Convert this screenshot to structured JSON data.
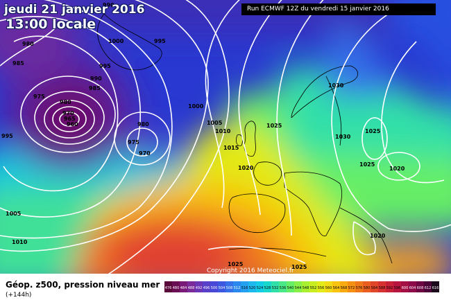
{
  "header": {
    "date": "jeudi 21 janvier 2016",
    "time": "13:00 locale",
    "run": "Run ECMWF 12Z du vendredi 15 janvier 2016"
  },
  "footer": {
    "title": "Géop. z500, pression niveau mer",
    "lead": "(+144h)",
    "copyright": "Copyright 2016 Meteociel.fr"
  },
  "isobar_labels": [
    "990",
    "980",
    "985",
    "990",
    "975",
    "980",
    "970",
    "965",
    "960",
    "995",
    "985",
    "995",
    "1000",
    "995",
    "1000",
    "980",
    "975",
    "970",
    "1005",
    "1010",
    "1015",
    "1020",
    "1025",
    "1030",
    "1030",
    "1025",
    "1025",
    "1020",
    "1020",
    "1005",
    "1010",
    "1025",
    "1025"
  ],
  "colorbar": {
    "labels": [
      "476",
      "480",
      "484",
      "488",
      "492",
      "496",
      "500",
      "504",
      "508",
      "512",
      "516",
      "520",
      "524",
      "528",
      "532",
      "536",
      "540",
      "544",
      "548",
      "552",
      "556",
      "560",
      "564",
      "568",
      "572",
      "576",
      "580",
      "584",
      "588",
      "592",
      "596",
      "600",
      "604",
      "608",
      "612",
      "616"
    ],
    "colors": [
      "#5a0a3a",
      "#6b0f55",
      "#7a1a78",
      "#7b2b9a",
      "#6a36b5",
      "#5840c8",
      "#4848d8",
      "#3c58e0",
      "#3470e8",
      "#2b88ee",
      "#23a0f0",
      "#1cb8ee",
      "#15cce6",
      "#18d8cc",
      "#30e0a8",
      "#4ae888",
      "#66ee66",
      "#88f048",
      "#a8f030",
      "#c8ee20",
      "#e2ea18",
      "#f2da14",
      "#f8c410",
      "#f8aa10",
      "#f59014",
      "#f0781a",
      "#ea5e22",
      "#e2462a",
      "#d63232",
      "#c82238",
      "#b8163e",
      "#a40f44",
      "#8c0a48",
      "#6e0642",
      "#4c0438",
      "#1a0a1a"
    ]
  },
  "colors": {
    "deep_low": "#6a0f6a",
    "ocean_blue": "#2a30d0",
    "sea_green": "#35c8a0",
    "ridge_yellow": "#e8e020",
    "warm_orange": "#f08a28",
    "hot_red": "#e04030"
  }
}
